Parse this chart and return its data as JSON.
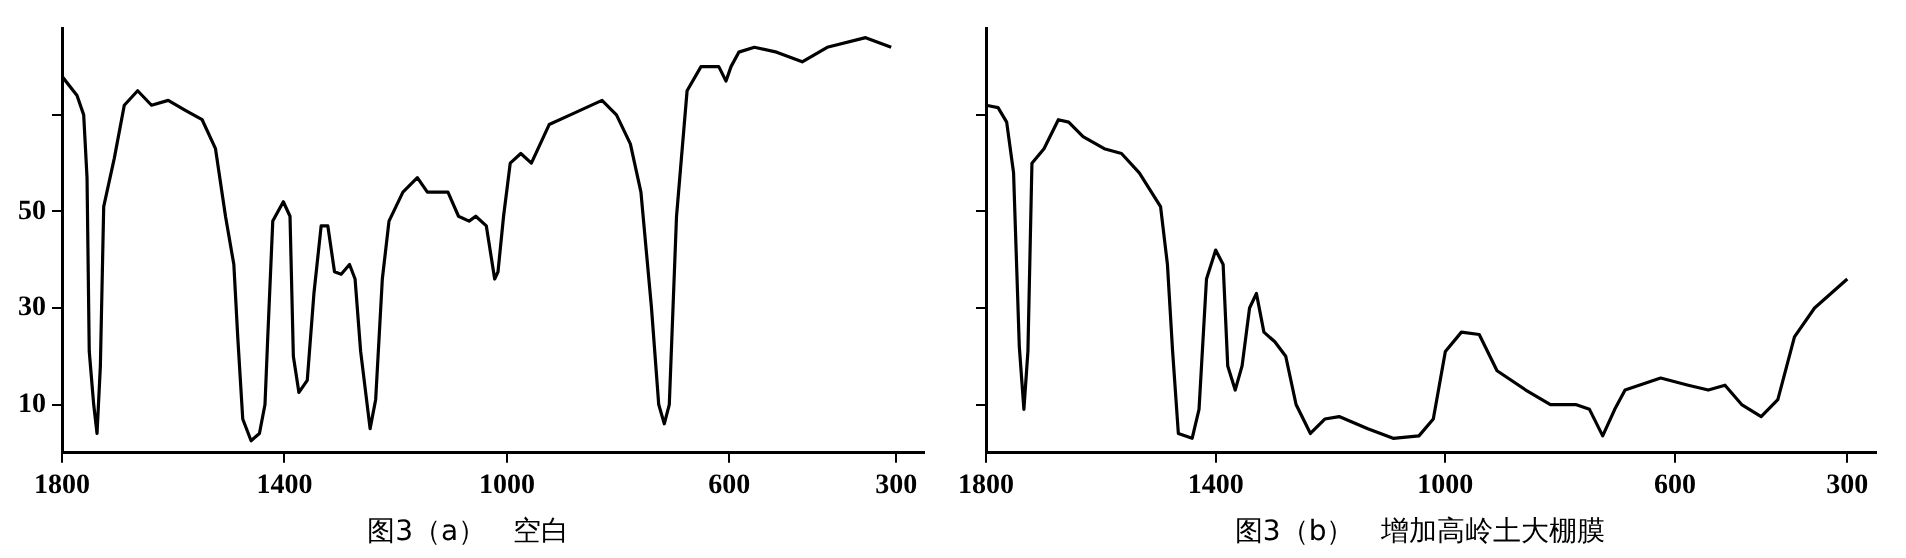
{
  "chart_data": [
    {
      "type": "line",
      "title": "图3（a）   空白",
      "color": "#000000",
      "xlim": [
        1800,
        250
      ],
      "xticks": [
        1800,
        1400,
        1000,
        600,
        300
      ],
      "ylim": [
        0,
        88
      ],
      "yticks": [
        10,
        30,
        50,
        {
          "value": 70,
          "label": null
        }
      ],
      "x": [
        1800,
        1773,
        1761,
        1755,
        1751,
        1743,
        1737,
        1731,
        1725,
        1706,
        1688,
        1664,
        1639,
        1609,
        1579,
        1548,
        1524,
        1506,
        1491,
        1484,
        1475,
        1460,
        1445,
        1435,
        1430,
        1421,
        1402,
        1390,
        1384,
        1374,
        1359,
        1347,
        1334,
        1322,
        1310,
        1298,
        1283,
        1273,
        1263,
        1246,
        1236,
        1224,
        1212,
        1187,
        1161,
        1143,
        1106,
        1087,
        1068,
        1056,
        1037,
        1022,
        1016,
        1006,
        994,
        975,
        956,
        924,
        886,
        829,
        803,
        778,
        759,
        740,
        727,
        717,
        708,
        695,
        676,
        651,
        619,
        606,
        597,
        583,
        555,
        515,
        469,
        424,
        355,
        309
      ],
      "values": [
        78,
        74,
        70,
        57,
        21,
        10,
        4,
        18,
        51,
        61,
        72,
        75,
        72,
        73,
        71,
        69,
        63,
        49,
        39,
        24,
        7,
        2.5,
        4,
        10,
        24,
        48,
        52,
        49,
        20,
        12.5,
        15,
        33,
        47,
        47,
        37.5,
        37,
        39,
        36,
        21,
        5,
        11,
        36,
        48,
        54,
        57,
        54,
        54,
        49,
        48,
        49,
        47,
        36,
        37.5,
        49,
        60,
        62,
        60,
        68,
        70,
        73,
        70,
        64,
        54,
        30,
        10,
        6,
        10,
        49,
        75,
        80,
        80,
        77,
        80,
        83,
        84,
        83,
        81,
        84,
        86,
        84
      ]
    },
    {
      "type": "line",
      "title": "图3（b）   增加高岭土大棚膜",
      "color": "#000000",
      "xlim": [
        1800,
        250
      ],
      "xticks": [
        1800,
        1400,
        1000,
        600,
        300
      ],
      "ylim": [
        0,
        88
      ],
      "yticks": [
        {
          "value": 10,
          "label": null
        },
        {
          "value": 30,
          "label": null
        },
        {
          "value": 50,
          "label": null
        },
        {
          "value": 70,
          "label": null
        }
      ],
      "tick_labels": "x",
      "x": [
        1800,
        1779,
        1764,
        1752,
        1742,
        1734,
        1727,
        1720,
        1699,
        1674,
        1656,
        1631,
        1594,
        1564,
        1533,
        1496,
        1484,
        1475,
        1465,
        1441,
        1429,
        1416,
        1400,
        1387,
        1379,
        1366,
        1354,
        1341,
        1329,
        1316,
        1297,
        1278,
        1260,
        1235,
        1210,
        1185,
        1135,
        1091,
        1046,
        1021,
        1000,
        972,
        941,
        910,
        860,
        817,
        773,
        749,
        726,
        705,
        687,
        625,
        577,
        542,
        513,
        484,
        450,
        421,
        392,
        357,
        300
      ],
      "values": [
        72,
        71.5,
        68.5,
        58,
        22,
        9,
        21,
        60,
        63,
        69,
        68.5,
        65.5,
        63,
        62,
        58,
        51,
        39,
        21,
        4,
        3,
        9,
        36,
        42,
        39,
        18,
        13,
        18,
        30,
        33,
        25,
        23,
        20,
        10,
        4,
        7,
        7.5,
        5,
        3,
        3.5,
        7,
        21,
        25,
        24.5,
        17,
        13,
        10,
        10,
        9,
        3.5,
        9,
        13,
        15.5,
        14,
        13,
        14,
        10,
        7.5,
        11,
        24,
        30,
        36
      ]
    }
  ]
}
